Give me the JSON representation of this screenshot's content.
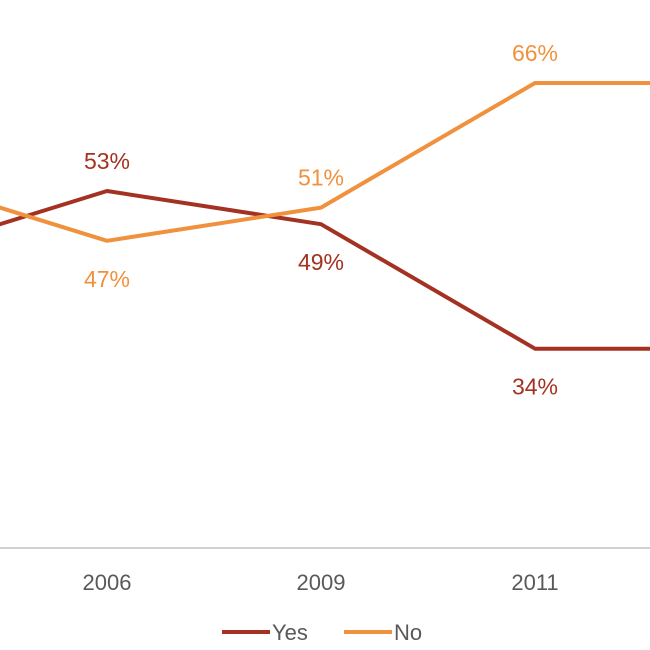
{
  "chart_data": {
    "type": "line",
    "categories": [
      "",
      "2006",
      "2009",
      "2011",
      ""
    ],
    "series": [
      {
        "name": "Yes",
        "color": "#a33222",
        "values": [
          45,
          53,
          49,
          34,
          34
        ],
        "labels": [
          "",
          "53%",
          "49%",
          "34%",
          ""
        ]
      },
      {
        "name": "No",
        "color": "#f0913e",
        "values": [
          55,
          47,
          51,
          66,
          66
        ],
        "labels": [
          "",
          "47%",
          "51%",
          "66%",
          ""
        ]
      }
    ],
    "ylim": [
      10,
      76
    ],
    "legend": "bottom",
    "grid": false
  }
}
